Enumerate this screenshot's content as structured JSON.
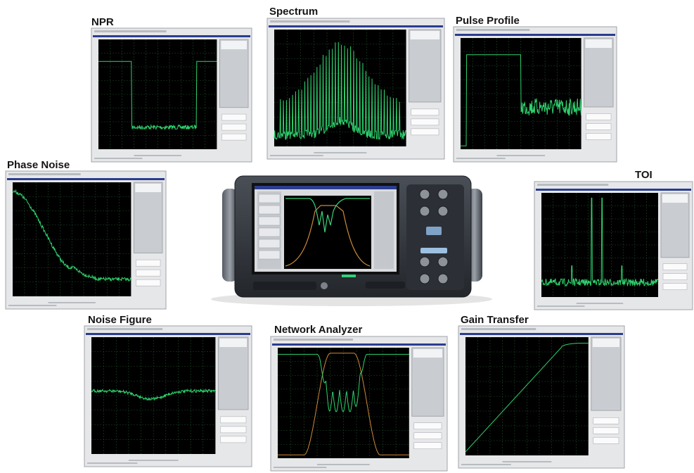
{
  "panels": [
    {
      "label": "NPR"
    },
    {
      "label": "Spectrum"
    },
    {
      "label": "Pulse Profile"
    },
    {
      "label": "Phase Noise"
    },
    {
      "label": "TOI"
    },
    {
      "label": "Noise Figure"
    },
    {
      "label": "Network Analyzer"
    },
    {
      "label": "Gain Transfer"
    }
  ]
}
